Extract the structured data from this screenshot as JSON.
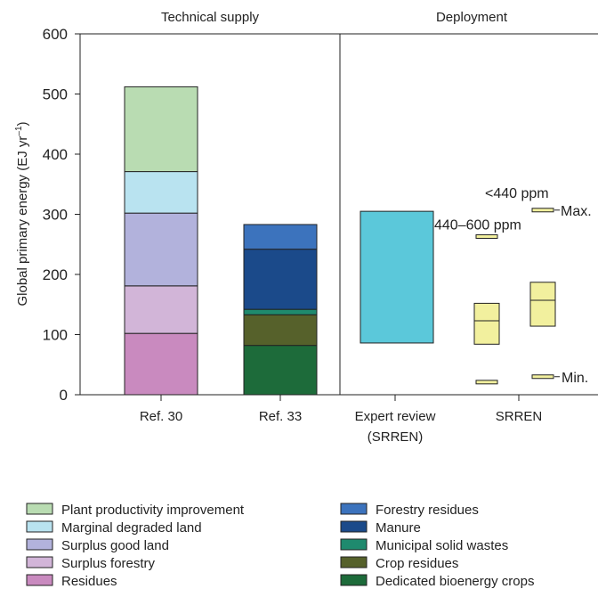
{
  "chart_data": {
    "type": "bar",
    "panels": [
      {
        "title": "Technical supply"
      },
      {
        "title": "Deployment"
      }
    ],
    "ylabel": "Global primary energy (EJ yr",
    "ylabel_sup": "–1",
    "ylabel_close": ")",
    "ylim": [
      0,
      600
    ],
    "yticks": [
      0,
      100,
      200,
      300,
      400,
      500,
      600
    ],
    "categories": [
      "Ref. 30",
      "Ref. 33",
      "Expert review",
      "SRREN"
    ],
    "category_sub": [
      "",
      "",
      "(SRREN)",
      ""
    ],
    "stacked_bars": [
      {
        "category": "Ref. 30",
        "segments": [
          {
            "name": "Residues",
            "from": 0,
            "to": 102,
            "color": "#c98abf"
          },
          {
            "name": "Surplus forestry",
            "from": 102,
            "to": 181,
            "color": "#d2b5d8"
          },
          {
            "name": "Surplus good land",
            "from": 181,
            "to": 302,
            "color": "#b2b2dc"
          },
          {
            "name": "Marginal degraded land",
            "from": 302,
            "to": 371,
            "color": "#b9e3f0"
          },
          {
            "name": "Plant productivity improvement",
            "from": 371,
            "to": 512,
            "color": "#b9dcb2"
          }
        ]
      },
      {
        "category": "Ref. 33",
        "segments": [
          {
            "name": "Dedicated bioenergy crops",
            "from": 0,
            "to": 82,
            "color": "#1d6b3a"
          },
          {
            "name": "Crop residues",
            "from": 82,
            "to": 133,
            "color": "#56612b"
          },
          {
            "name": "Municipal solid wastes",
            "from": 133,
            "to": 142,
            "color": "#1f8a6e"
          },
          {
            "name": "Manure",
            "from": 142,
            "to": 242,
            "color": "#1b4a8a"
          },
          {
            "name": "Forestry residues",
            "from": 242,
            "to": 283,
            "color": "#3c73bd"
          }
        ]
      }
    ],
    "expert_review": {
      "category": "Expert review",
      "low": 86,
      "high": 305,
      "color": "#5bc8da"
    },
    "srren_scenarios": [
      {
        "label": "440–600 ppm",
        "min": 21,
        "q1": 84,
        "median": 123,
        "q3": 152,
        "max": 263
      },
      {
        "label": "<440 ppm",
        "min": 30,
        "q1": 114,
        "median": 157,
        "q3": 187,
        "max": 307
      }
    ],
    "srren_color": "#f2f09e",
    "annotations": {
      "max": "Max.",
      "min": "Min."
    },
    "legend": {
      "placement": "bottom",
      "left": [
        {
          "label": "Plant productivity improvement",
          "color": "#b9dcb2"
        },
        {
          "label": "Marginal degraded land",
          "color": "#b9e3f0"
        },
        {
          "label": "Surplus good land",
          "color": "#b2b2dc"
        },
        {
          "label": "Surplus forestry",
          "color": "#d2b5d8"
        },
        {
          "label": "Residues",
          "color": "#c98abf"
        }
      ],
      "right": [
        {
          "label": "Forestry residues",
          "color": "#3c73bd"
        },
        {
          "label": "Manure",
          "color": "#1b4a8a"
        },
        {
          "label": "Municipal solid wastes",
          "color": "#1f8a6e"
        },
        {
          "label": "Crop residues",
          "color": "#56612b"
        },
        {
          "label": "Dedicated bioenergy crops",
          "color": "#1d6b3a"
        }
      ]
    }
  }
}
